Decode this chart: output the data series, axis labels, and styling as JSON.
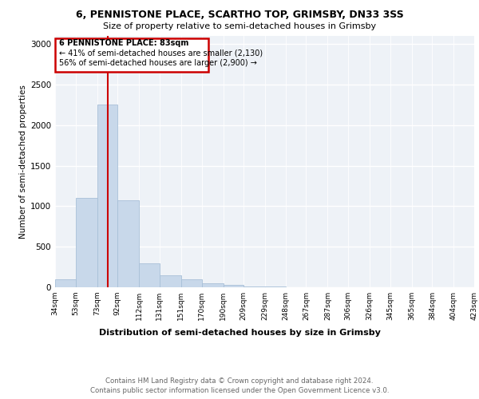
{
  "title1": "6, PENNISTONE PLACE, SCARTHO TOP, GRIMSBY, DN33 3SS",
  "title2": "Size of property relative to semi-detached houses in Grimsby",
  "xlabel": "Distribution of semi-detached houses by size in Grimsby",
  "ylabel": "Number of semi-detached properties",
  "footer1": "Contains HM Land Registry data © Crown copyright and database right 2024.",
  "footer2": "Contains public sector information licensed under the Open Government Licence v3.0.",
  "annotation_title": "6 PENNISTONE PLACE: 83sqm",
  "annotation_line1": "← 41% of semi-detached houses are smaller (2,130)",
  "annotation_line2": "56% of semi-detached houses are larger (2,900) →",
  "bar_color": "#c8d8ea",
  "bar_edge_color": "#a8c0d8",
  "red_line_x": 83,
  "bins": [
    34,
    53,
    73,
    92,
    112,
    131,
    151,
    170,
    190,
    209,
    229,
    248,
    267,
    287,
    306,
    326,
    345,
    365,
    384,
    404,
    423
  ],
  "values": [
    100,
    1100,
    2250,
    1070,
    300,
    150,
    100,
    50,
    30,
    10,
    5,
    3,
    2,
    1,
    0,
    0,
    0,
    0,
    0,
    0
  ],
  "ylim": [
    0,
    3100
  ],
  "yticks": [
    0,
    500,
    1000,
    1500,
    2000,
    2500,
    3000
  ],
  "box_color": "#cc0000",
  "background_color": "#eef2f7"
}
